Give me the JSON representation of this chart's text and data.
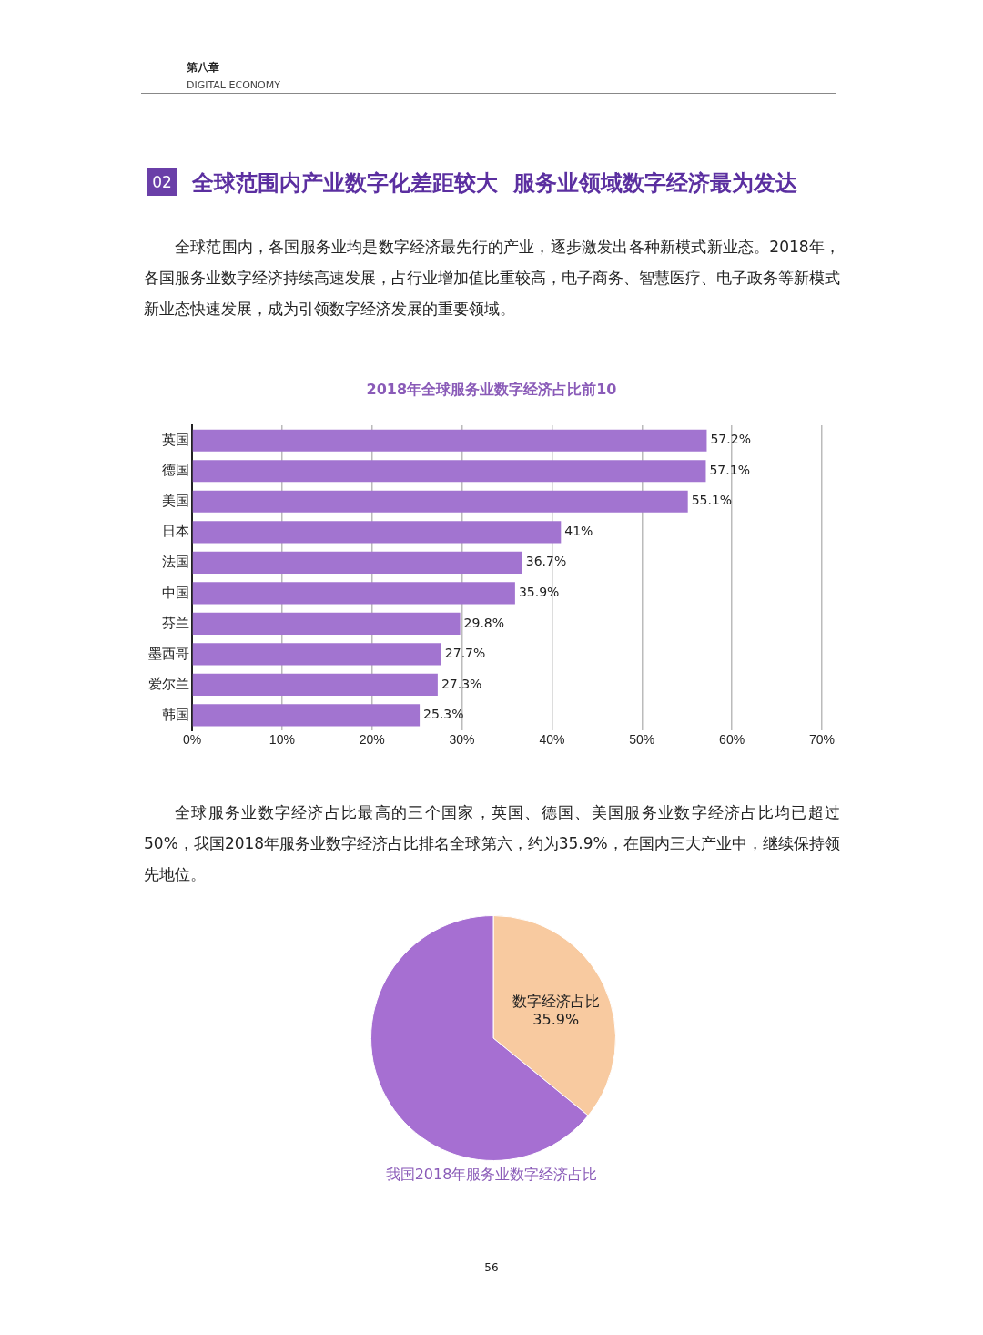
{
  "chart_data": [
    {
      "type": "bar",
      "orientation": "horizontal",
      "title": "2018年全球服务业数字经济占比前10",
      "annotations": [
        "第八章",
        "DIGITAL ECONOMY",
        "02",
        "全球范围内产业数字化差距较大  服务业领域数字经济最为发达",
        "全球范围内，各国服务业均是数字经济最先行的产业，逐步激发出各种新模式新业态。2018年，各国服务业数字经济持续高速发展，占行业增加值比重较高，电子商务、智慧医疗、电子政务等新模式新业态快速发展，成为引领数字经济发展的重要领域。"
      ],
      "categories": [
        "英国",
        "德国",
        "美国",
        "日本",
        "法国",
        "中国",
        "芬兰",
        "墨西哥",
        "爱尔兰",
        "韩国"
      ],
      "values": [
        57.2,
        57.1,
        55.1,
        41,
        36.7,
        35.9,
        29.8,
        27.7,
        27.3,
        25.3
      ],
      "value_labels": [
        "57.2%",
        "57.1%",
        "55.1%",
        "41%",
        "36.7%",
        "35.9%",
        "29.8%",
        "27.7%",
        "27.3%",
        "25.3%"
      ],
      "color": "#a274d0",
      "xlim": [
        0,
        70
      ],
      "xticks": [
        {
          "value": 0,
          "label": "0%"
        },
        {
          "value": 10,
          "label": "10%"
        },
        {
          "value": 20,
          "label": "20%"
        },
        {
          "value": 30,
          "label": "30%"
        },
        {
          "value": 40,
          "label": "40%"
        },
        {
          "value": 50,
          "label": "50%"
        },
        {
          "value": 60,
          "label": "60%"
        },
        {
          "value": 70,
          "label": "70%"
        }
      ],
      "grid": "x",
      "legend": false
    },
    {
      "type": "pie",
      "title": "我国2018年服务业数字经济占比",
      "annotations": [
        "全球服务业数字经济占比最高的三个国家，英国、德国、美国服务业数字经济占比均已超过50%，我国2018年服务业数字经济占比排名全球第六，约为35.9%，在国内三大产业中，继续保持领先地位。",
        "56"
      ],
      "categories": [
        "数字经济占比",
        null
      ],
      "values": [
        35.9,
        64.1
      ],
      "value_labels": [
        "35.9%",
        null
      ],
      "colors": [
        "#f8caa0",
        "#a66fd2"
      ],
      "legend": false
    }
  ]
}
